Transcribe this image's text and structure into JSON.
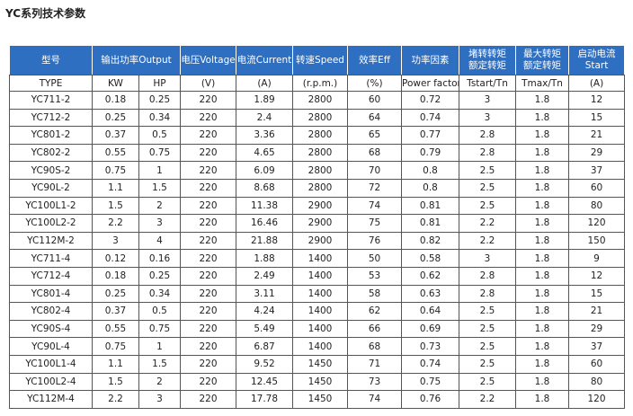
{
  "title": "YC系列技术参数",
  "table": {
    "header": [
      [
        "型号"
      ],
      [
        "输出功率Output"
      ],
      [
        "电压Voltage"
      ],
      [
        "电流Current"
      ],
      [
        "转速Speed"
      ],
      [
        "效率Eff"
      ],
      [
        "功率因素"
      ],
      [
        "堵转转矩",
        "额定转矩"
      ],
      [
        "最大转矩",
        "额定转矩"
      ],
      [
        "启动电流",
        "Start"
      ]
    ],
    "units": [
      "TYPE",
      "KW",
      "HP",
      "(V)",
      "(A)",
      "(r.p.m.)",
      "(%)",
      "Power factor",
      "Tstart/Tn",
      "Tmax/Tn",
      "(A)"
    ],
    "rows": [
      [
        "YC711-2",
        "0.18",
        "0.25",
        "220",
        "1.89",
        "2800",
        "60",
        "0.72",
        "3",
        "1.8",
        "12"
      ],
      [
        "YC712-2",
        "0.25",
        "0.34",
        "220",
        "2.4",
        "2800",
        "64",
        "0.74",
        "3",
        "1.8",
        "15"
      ],
      [
        "YC801-2",
        "0.37",
        "0.5",
        "220",
        "3.36",
        "2800",
        "65",
        "0.77",
        "2.8",
        "1.8",
        "21"
      ],
      [
        "YC802-2",
        "0.55",
        "0.75",
        "220",
        "4.65",
        "2800",
        "68",
        "0.79",
        "2.8",
        "1.8",
        "29"
      ],
      [
        "YC90S-2",
        "0.75",
        "1",
        "220",
        "6.09",
        "2800",
        "70",
        "0.8",
        "2.5",
        "1.8",
        "37"
      ],
      [
        "YC90L-2",
        "1.1",
        "1.5",
        "220",
        "8.68",
        "2800",
        "72",
        "0.8",
        "2.5",
        "1.8",
        "60"
      ],
      [
        "YC100L1-2",
        "1.5",
        "2",
        "220",
        "11.38",
        "2900",
        "74",
        "0.81",
        "2.5",
        "1.8",
        "80"
      ],
      [
        "YC100L2-2",
        "2.2",
        "3",
        "220",
        "16.46",
        "2900",
        "75",
        "0.81",
        "2.2",
        "1.8",
        "120"
      ],
      [
        "YC112M-2",
        "3",
        "4",
        "220",
        "21.88",
        "2900",
        "76",
        "0.82",
        "2.2",
        "1.8",
        "150"
      ],
      [
        "YC711-4",
        "0.12",
        "0.16",
        "220",
        "1.88",
        "1400",
        "50",
        "0.58",
        "3",
        "1.8",
        "9"
      ],
      [
        "YC712-4",
        "0.18",
        "0.25",
        "220",
        "2.49",
        "1400",
        "53",
        "0.62",
        "2.8",
        "1.8",
        "12"
      ],
      [
        "YC801-4",
        "0.25",
        "0.34",
        "220",
        "3.11",
        "1400",
        "58",
        "0.63",
        "2.8",
        "1.8",
        "15"
      ],
      [
        "YC802-4",
        "0.37",
        "0.5",
        "220",
        "4.24",
        "1400",
        "62",
        "0.64",
        "2.5",
        "1.8",
        "21"
      ],
      [
        "YC90S-4",
        "0.55",
        "0.75",
        "220",
        "5.49",
        "1400",
        "66",
        "0.69",
        "2.5",
        "1.8",
        "29"
      ],
      [
        "YC90L-4",
        "0.75",
        "1",
        "220",
        "6.87",
        "1400",
        "68",
        "0.73",
        "2.5",
        "1.8",
        "37"
      ],
      [
        "YC100L1-4",
        "1.1",
        "1.5",
        "220",
        "9.52",
        "1450",
        "71",
        "0.74",
        "2.5",
        "1.8",
        "60"
      ],
      [
        "YC100L2-4",
        "1.5",
        "2",
        "220",
        "12.45",
        "1450",
        "73",
        "0.75",
        "2.5",
        "1.8",
        "80"
      ],
      [
        "YC112M-4",
        "2.2",
        "3",
        "220",
        "17.78",
        "1450",
        "74",
        "0.76",
        "2.2",
        "1.8",
        "120"
      ]
    ]
  }
}
